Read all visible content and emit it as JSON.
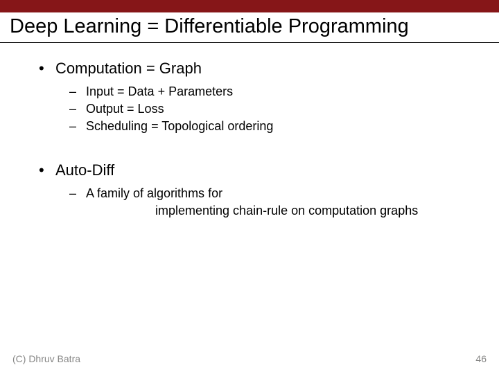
{
  "header_bar_color": "#861618",
  "title": {
    "text": "Deep Learning = Differentiable Programming",
    "fontsize": 29,
    "color": "#000000"
  },
  "sections": [
    {
      "heading": "Computation = Graph",
      "heading_fontsize": 22,
      "heading_color": "#000000",
      "items": [
        "Input = Data + Parameters",
        "Output = Loss",
        "Scheduling = Topological ordering"
      ],
      "item_fontsize": 18,
      "item_color": "#000000"
    },
    {
      "heading": "Auto-Diff",
      "heading_fontsize": 22,
      "heading_color": "#000000",
      "items_multiline": [
        [
          "A family of algorithms for",
          "implementing chain-rule on computation graphs"
        ]
      ],
      "item_fontsize": 18,
      "item_color": "#000000"
    }
  ],
  "bullet_symbol": "•",
  "dash_symbol": "–",
  "footer": {
    "copyright": "(C) Dhruv Batra",
    "page_number": "46",
    "fontsize": 14,
    "copyright_color": "#878786",
    "page_color": "#878786"
  }
}
